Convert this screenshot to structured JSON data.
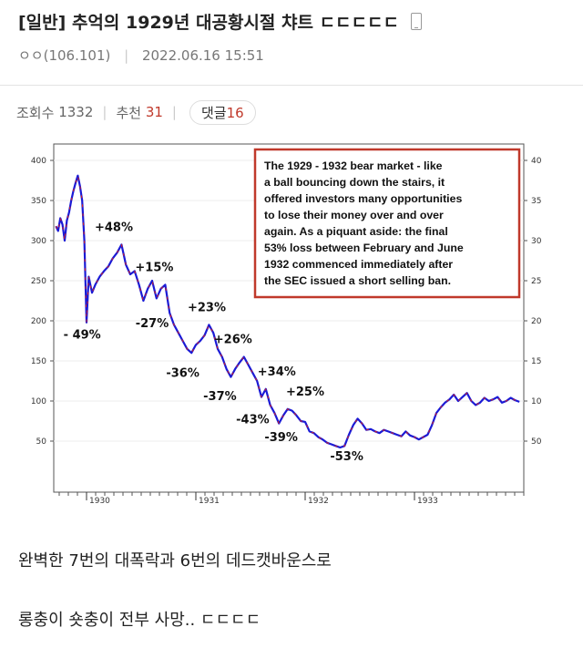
{
  "post": {
    "category": "[일반]",
    "title": "추억의 1929년 대공황시절 챠트 ㄷㄷㄷㄷㄷ",
    "author": "ㅇㅇ(106.101)",
    "date": "2022.06.16 15:51",
    "views_label": "조회수",
    "views": "1332",
    "recommend_label": "추천",
    "recommend": "31",
    "comments_label": "댓글",
    "comments": "16",
    "body_line1": "완벽한 7번의 대폭락과 6번의 데드캣바운스로",
    "body_line2": "롱충이 숏충이 전부 사망.. ㄷㄷㄷㄷ"
  },
  "chart_data": {
    "type": "line",
    "title": "",
    "xlabel": "",
    "ylabel": "",
    "ylim": [
      0,
      400
    ],
    "yticks": [
      50,
      100,
      150,
      200,
      250,
      300,
      350,
      400
    ],
    "x_ticks": [
      "1930",
      "1931",
      "1932",
      "1933"
    ],
    "x_range": [
      1929.7,
      1934.0
    ],
    "series": [
      {
        "x": [
          1929.72,
          1929.74,
          1929.76,
          1929.78,
          1929.8,
          1929.82,
          1929.84,
          1929.86,
          1929.88,
          1929.9,
          1929.92,
          1929.94,
          1929.96,
          1929.98,
          1930.0,
          1930.02,
          1930.05,
          1930.08,
          1930.12,
          1930.16,
          1930.2,
          1930.24,
          1930.28,
          1930.32,
          1930.36,
          1930.4,
          1930.44,
          1930.48,
          1930.52,
          1930.56,
          1930.6,
          1930.64,
          1930.68,
          1930.72,
          1930.76,
          1930.8,
          1930.84,
          1930.88,
          1930.92,
          1930.96,
          1931.0,
          1931.04,
          1931.08,
          1931.12,
          1931.16,
          1931.2,
          1931.24,
          1931.28,
          1931.32,
          1931.36,
          1931.4,
          1931.44,
          1931.48,
          1931.52,
          1931.56,
          1931.6,
          1931.64,
          1931.68,
          1931.72,
          1931.76,
          1931.8,
          1931.84,
          1931.88,
          1931.92,
          1931.96,
          1932.0,
          1932.04,
          1932.08,
          1932.12,
          1932.16,
          1932.2,
          1932.24,
          1932.28,
          1932.32,
          1932.36,
          1932.4,
          1932.44,
          1932.48,
          1932.52,
          1932.56,
          1932.6,
          1932.64,
          1932.68,
          1932.72,
          1932.76,
          1932.8,
          1932.84,
          1932.88,
          1932.92,
          1932.96,
          1933.0,
          1933.04,
          1933.08,
          1933.12,
          1933.16,
          1933.2,
          1933.24,
          1933.28,
          1933.32,
          1933.36,
          1933.4,
          1933.44,
          1933.48,
          1933.52,
          1933.56,
          1933.6,
          1933.64,
          1933.68,
          1933.72,
          1933.76,
          1933.8,
          1933.84,
          1933.88,
          1933.92,
          1933.96
        ],
        "y": [
          318,
          312,
          328,
          320,
          300,
          325,
          335,
          350,
          362,
          372,
          381,
          368,
          350,
          300,
          198,
          255,
          235,
          245,
          255,
          262,
          268,
          278,
          285,
          295,
          270,
          258,
          262,
          245,
          225,
          240,
          250,
          228,
          240,
          245,
          210,
          195,
          185,
          175,
          165,
          160,
          170,
          175,
          182,
          195,
          185,
          165,
          155,
          140,
          130,
          140,
          148,
          155,
          145,
          135,
          125,
          105,
          115,
          95,
          85,
          72,
          82,
          90,
          88,
          82,
          75,
          74,
          62,
          60,
          55,
          52,
          48,
          46,
          44,
          42,
          44,
          58,
          70,
          78,
          72,
          64,
          65,
          62,
          60,
          64,
          62,
          60,
          58,
          56,
          62,
          57,
          55,
          52,
          55,
          58,
          70,
          85,
          92,
          98,
          102,
          108,
          100,
          105,
          110,
          100,
          95,
          98,
          104,
          100,
          102,
          105,
          98,
          100,
          104,
          101,
          99
        ]
      }
    ],
    "annotations": [
      {
        "text": "- 49%",
        "x": 1929.96,
        "y": 178
      },
      {
        "text": "+48%",
        "x": 1930.25,
        "y": 312
      },
      {
        "text": "-27%",
        "x": 1930.6,
        "y": 192
      },
      {
        "text": "+15%",
        "x": 1930.62,
        "y": 262
      },
      {
        "text": "-36%",
        "x": 1930.88,
        "y": 130
      },
      {
        "text": "+23%",
        "x": 1931.1,
        "y": 212
      },
      {
        "text": "-37%",
        "x": 1931.22,
        "y": 101
      },
      {
        "text": "+26%",
        "x": 1931.34,
        "y": 172
      },
      {
        "text": "-43%",
        "x": 1931.52,
        "y": 72
      },
      {
        "text": "+34%",
        "x": 1931.74,
        "y": 132
      },
      {
        "text": "-39%",
        "x": 1931.78,
        "y": 50
      },
      {
        "text": "+25%",
        "x": 1932.0,
        "y": 107
      },
      {
        "text": "-53%",
        "x": 1932.38,
        "y": 26
      }
    ],
    "note": [
      "The 1929 - 1932 bear market - like",
      "a ball bouncing down the stairs, it",
      "offered investors many opportunities",
      "to lose their money over and over",
      "again. As a piquant aside: the final",
      "53% loss between February and June",
      "1932 commenced immediately after",
      "the SEC issued a short selling ban."
    ]
  }
}
